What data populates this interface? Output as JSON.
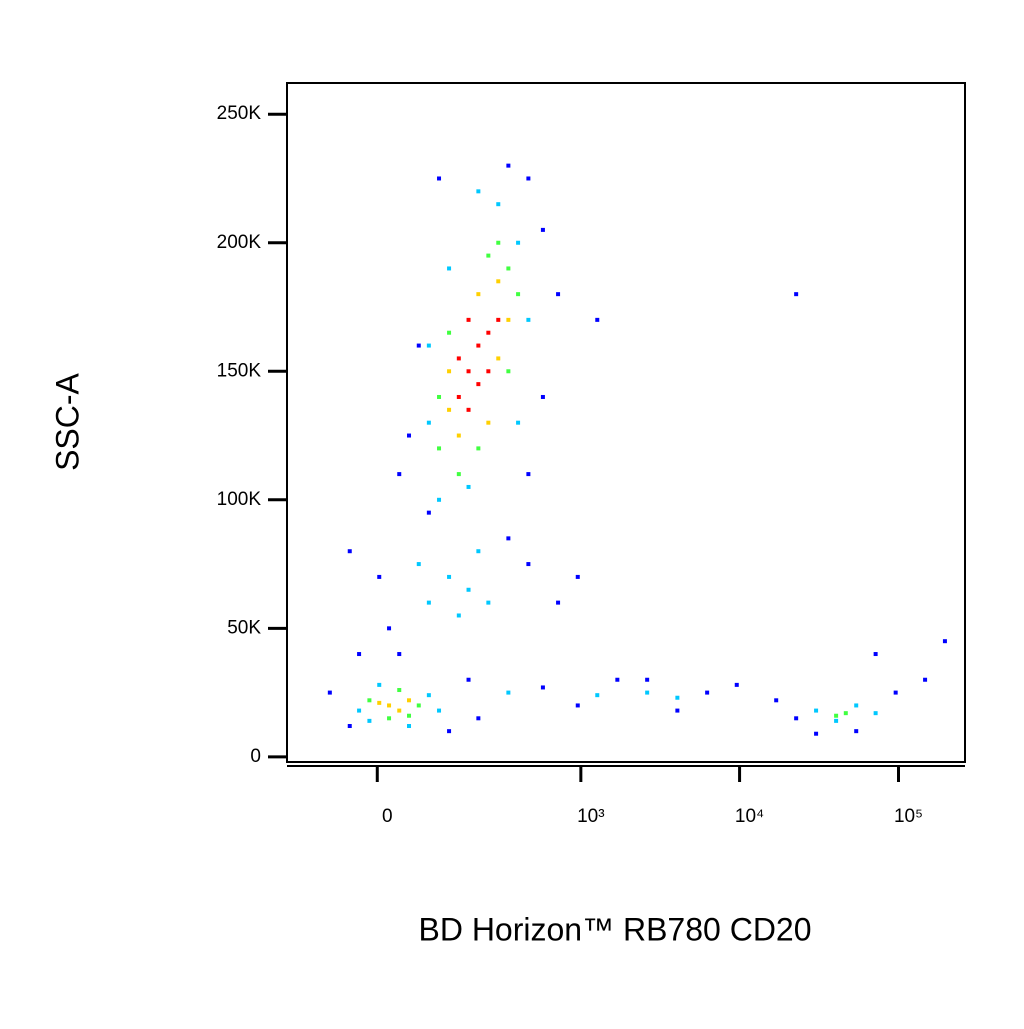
{
  "chart_data": {
    "type": "scatter",
    "x_label": "BD Horizon™ RB780 CD20",
    "y_label": "SSC-A",
    "xscale": "biexponential",
    "xlim": [
      -180,
      262144
    ],
    "ylim": [
      -2000,
      262144
    ],
    "xticks": [
      0,
      {
        "value": 1000,
        "label": "10³"
      },
      {
        "value": 10000,
        "label": "10⁴"
      },
      {
        "value": 100000,
        "label": "10⁵"
      }
    ],
    "yticks": [
      0,
      {
        "value": 50000,
        "label": "50K"
      },
      {
        "value": 100000,
        "label": "100K"
      },
      {
        "value": 150000,
        "label": "150K"
      },
      {
        "value": 200000,
        "label": "200K"
      },
      {
        "value": 250000,
        "label": "250K"
      }
    ],
    "series": [
      {
        "color": "#0000ff",
        "x": [
          67,
          463,
          574,
          50,
          34,
          86,
          574,
          717,
          463,
          -43,
          3,
          18,
          343,
          463,
          717,
          956,
          -28,
          34,
          -78,
          -43,
          130,
          183,
          215,
          574,
          1700,
          956,
          6250,
          9600,
          4060,
          2620,
          17000,
          22700,
          96000,
          147000,
          196000,
          71800,
          30300,
          54200,
          1270,
          22700,
          343,
          107
        ],
        "y": [
          160000,
          225000,
          205000,
          125000,
          110000,
          95000,
          140000,
          180000,
          110000,
          80000,
          70000,
          50000,
          85000,
          75000,
          60000,
          70000,
          40000,
          40000,
          25000,
          12000,
          10000,
          30000,
          15000,
          27000,
          30000,
          20000,
          25000,
          28000,
          18000,
          30000,
          22000,
          15000,
          25000,
          30000,
          45000,
          40000,
          9000,
          10000,
          170000,
          180000,
          230000,
          225000
        ]
      },
      {
        "color": "#00c8ff",
        "x": [
          86,
          107,
          183,
          294,
          215,
          397,
          463,
          86,
          397,
          130,
          86,
          130,
          183,
          67,
          155,
          215,
          252,
          -28,
          86,
          -12,
          107,
          50,
          3,
          343,
          1270,
          2620,
          4060,
          30300,
          54200,
          40500,
          71800
        ],
        "y": [
          130000,
          100000,
          105000,
          215000,
          220000,
          200000,
          170000,
          160000,
          130000,
          190000,
          60000,
          70000,
          65000,
          75000,
          55000,
          80000,
          60000,
          18000,
          24000,
          14000,
          18000,
          12000,
          28000,
          25000,
          24000,
          25000,
          23000,
          18000,
          20000,
          14000,
          17000
        ]
      },
      {
        "color": "#40ff40",
        "x": [
          107,
          343,
          252,
          130,
          215,
          343,
          107,
          155,
          294,
          397,
          -12,
          67,
          34,
          18,
          50,
          46600,
          40500
        ],
        "y": [
          140000,
          190000,
          195000,
          165000,
          120000,
          150000,
          120000,
          110000,
          200000,
          180000,
          22000,
          20000,
          26000,
          15000,
          16000,
          17000,
          16000
        ]
      },
      {
        "color": "#ffd000",
        "x": [
          130,
          294,
          215,
          155,
          252,
          294,
          130,
          343,
          18,
          34,
          50,
          3
        ],
        "y": [
          150000,
          155000,
          180000,
          125000,
          130000,
          185000,
          135000,
          170000,
          20000,
          18000,
          22000,
          21000
        ]
      },
      {
        "color": "#ff0000",
        "x": [
          183,
          215,
          155,
          252,
          183,
          215,
          252,
          155,
          294,
          183
        ],
        "y": [
          150000,
          160000,
          140000,
          165000,
          135000,
          145000,
          150000,
          155000,
          170000,
          170000
        ]
      }
    ]
  }
}
